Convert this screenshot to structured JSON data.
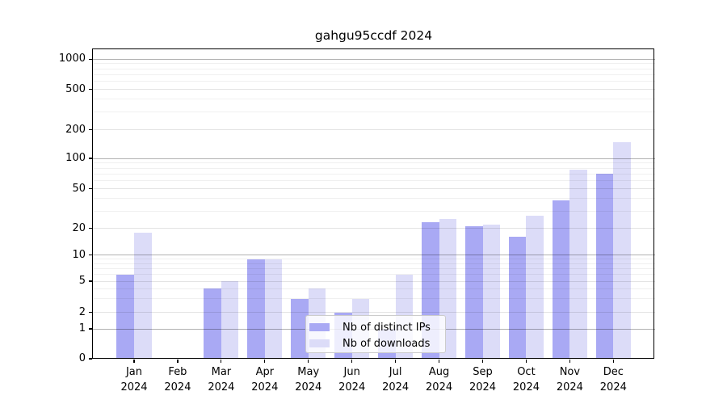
{
  "chart_data": {
    "type": "bar",
    "title": "gahgu95ccdf 2024",
    "categories": [
      "Jan 2024",
      "Feb 2024",
      "Mar 2024",
      "Apr 2024",
      "May 2024",
      "Jun 2024",
      "Jul 2024",
      "Aug 2024",
      "Sep 2024",
      "Oct 2024",
      "Nov 2024",
      "Dec 2024"
    ],
    "month_labels": [
      "Jan",
      "Feb",
      "Mar",
      "Apr",
      "May",
      "Jun",
      "Jul",
      "Aug",
      "Sep",
      "Oct",
      "Nov",
      "Dec"
    ],
    "year_label": "2024",
    "series": [
      {
        "name": "Nb of distinct IPs",
        "color": "#a9a9f4",
        "values": [
          6,
          0,
          4,
          9,
          3,
          2,
          1,
          23,
          21,
          16,
          38,
          70
        ]
      },
      {
        "name": "Nb of downloads",
        "color": "#dcdcf8",
        "values": [
          18,
          0,
          5,
          9,
          4,
          3,
          6,
          25,
          22,
          27,
          78,
          147
        ]
      }
    ],
    "yscale": "symlog",
    "ytick_values": [
      0,
      1,
      2,
      5,
      10,
      20,
      50,
      100,
      200,
      500,
      1000
    ],
    "ytick_labels": [
      "0",
      "1",
      "2",
      "5",
      "10",
      "20",
      "50",
      "100",
      "200",
      "500",
      "1000"
    ],
    "ylim": [
      0,
      1500
    ],
    "grid": true,
    "legend_position": "lower-center",
    "grid_major_values": [
      1,
      10,
      100,
      1000
    ],
    "grid_mid_values": [
      2,
      5,
      20,
      50,
      200,
      500
    ],
    "grid_minor_values": [
      3,
      4,
      6,
      7,
      8,
      9,
      30,
      40,
      60,
      70,
      80,
      90,
      300,
      400,
      600,
      700,
      800,
      900
    ]
  }
}
